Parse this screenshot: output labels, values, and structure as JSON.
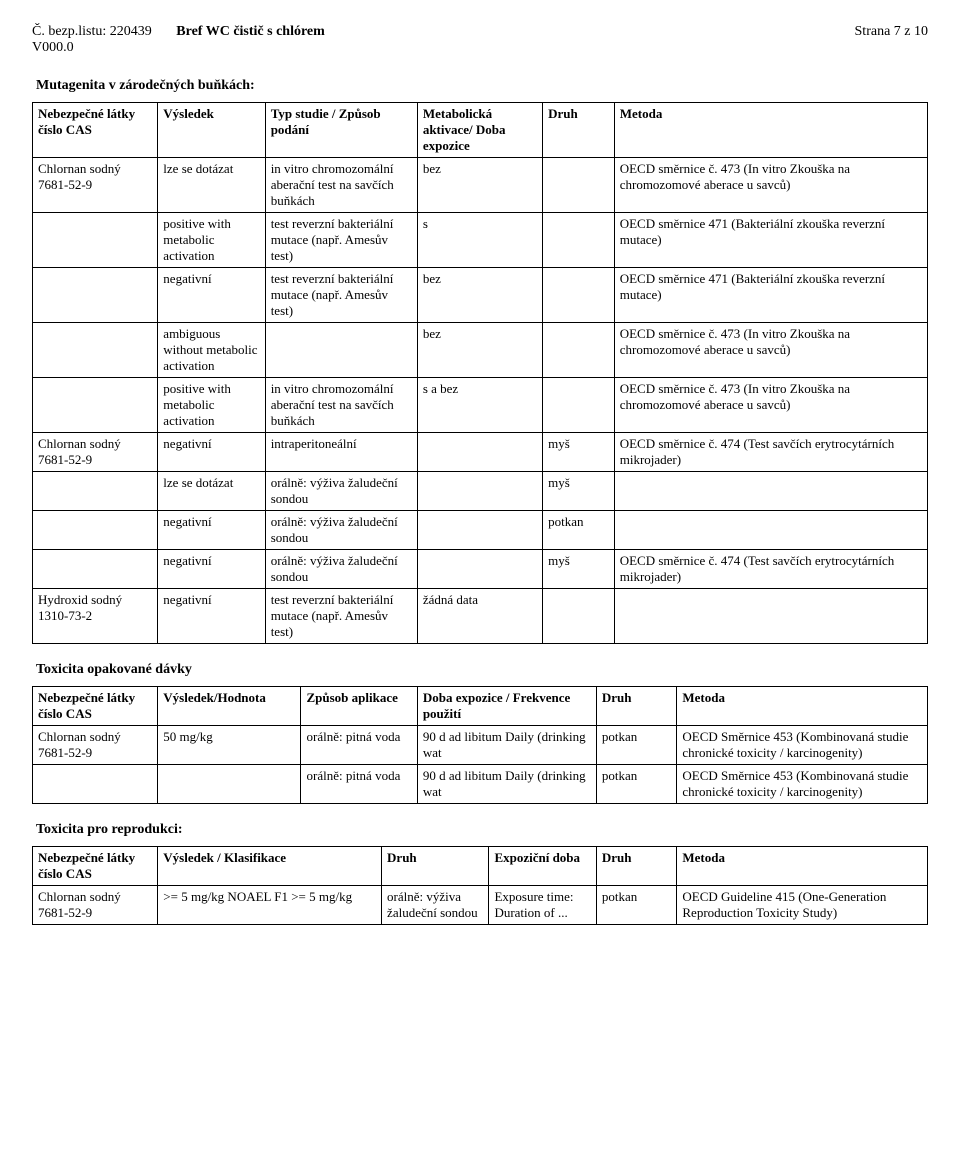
{
  "header": {
    "left1": "Č. bezp.listu: 220439",
    "left2": "V000.0",
    "center": "Bref WC čistič s chlórem",
    "right": "Strana 7 z 10"
  },
  "sec1": {
    "title": "Mutagenita v zárodečných buňkách:",
    "head": [
      "Nebezpečné látky\nčíslo CAS",
      "Výsledek",
      "Typ studie /\nZpůsob podání",
      "Metabolická aktivace/ Doba expozice",
      "Druh",
      "Metoda"
    ],
    "rows": [
      [
        "Chlornan sodný\n7681-52-9",
        "lze se dotázat",
        "in vitro chromozomální aberační test na savčích buňkách",
        "bez",
        "",
        "OECD směrnice č. 473 (In vitro Zkouška na chromozomové aberace u savců)"
      ],
      [
        "",
        "positive with metabolic activation",
        "test reverzní bakteriální mutace (např. Amesův test)",
        "s",
        "",
        "OECD směrnice 471 (Bakteriální zkouška reverzní mutace)"
      ],
      [
        "",
        "negativní",
        "test reverzní bakteriální mutace (např. Amesův test)",
        "bez",
        "",
        "OECD směrnice 471 (Bakteriální zkouška reverzní mutace)"
      ],
      [
        "",
        "ambiguous without metabolic activation",
        "",
        "bez",
        "",
        "OECD směrnice č. 473 (In vitro Zkouška na chromozomové aberace u savců)"
      ],
      [
        "",
        "positive with metabolic activation",
        "in vitro chromozomální aberační test na savčích buňkách",
        "s a bez",
        "",
        "OECD směrnice č. 473 (In vitro Zkouška na chromozomové aberace u savců)"
      ],
      [
        "Chlornan sodný\n7681-52-9",
        "negativní",
        "intraperitoneální",
        "",
        "myš",
        "OECD směrnice č. 474 (Test savčích erytrocytárních mikrojader)"
      ],
      [
        "",
        "lze se dotázat",
        "orálně: výživa žaludeční sondou",
        "",
        "myš",
        ""
      ],
      [
        "",
        "negativní",
        "orálně: výživa žaludeční sondou",
        "",
        "potkan",
        ""
      ],
      [
        "",
        "negativní",
        "orálně: výživa žaludeční sondou",
        "",
        "myš",
        "OECD směrnice č. 474 (Test savčích erytrocytárních mikrojader)"
      ],
      [
        "Hydroxid sodný\n1310-73-2",
        "negativní",
        "test reverzní bakteriální mutace (např. Amesův test)",
        "žádná data",
        "",
        ""
      ]
    ]
  },
  "sec2": {
    "title": "Toxicita opakované dávky",
    "head": [
      "Nebezpečné látky\nčíslo CAS",
      "Výsledek/Hodnota",
      "Způsob aplikace",
      "Doba expozice / Frekvence použití",
      "Druh",
      "Metoda"
    ],
    "rows": [
      [
        "Chlornan sodný\n7681-52-9",
        "50 mg/kg",
        "orálně: pitná voda",
        "90 d ad libitum Daily (drinking wat",
        "potkan",
        "OECD Směrnice 453 (Kombinovaná studie chronické toxicity / karcinogenity)"
      ],
      [
        "",
        "",
        "orálně: pitná voda",
        "90 d ad libitum Daily (drinking wat",
        "potkan",
        "OECD Směrnice 453 (Kombinovaná studie chronické toxicity / karcinogenity)"
      ]
    ]
  },
  "sec3": {
    "title": "Toxicita pro reprodukci:",
    "head": [
      "Nebezpečné látky\nčíslo CAS",
      "Výsledek / Klasifikace",
      "Druh",
      "Expoziční doba",
      "Druh",
      "Metoda"
    ],
    "rows": [
      [
        "Chlornan sodný\n7681-52-9",
        ">= 5 mg/kg NOAEL F1 >= 5 mg/kg",
        "orálně: výživa žaludeční sondou",
        "Exposure time: Duration of ...",
        "potkan",
        "OECD Guideline 415 (One-Generation Reproduction Toxicity Study)"
      ]
    ]
  }
}
